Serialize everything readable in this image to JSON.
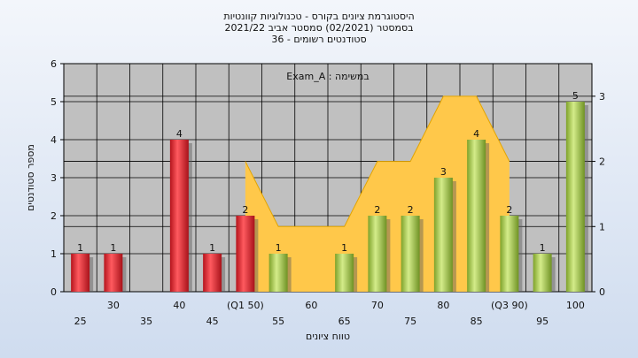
{
  "chart_data": {
    "type": "bar",
    "title_lines": [
      "היסטוגרמת ציונים בקורס - טכנולוגיות קוונטיות",
      "בסמסטר  (02/2021)  סמסטר אביב 2021/22",
      "סטודנטים רשומים - 36"
    ],
    "annotation": "במשימה : Exam_A",
    "xlabel": "טווח ציונים",
    "ylabel": "מספר סטודנטים",
    "categories": [
      "25",
      "30",
      "35",
      "40",
      "45",
      "(Q1 50)",
      "55",
      "60",
      "65",
      "70",
      "75",
      "80",
      "85",
      "(Q3 90)",
      "95",
      "100"
    ],
    "values": [
      1,
      1,
      0,
      4,
      1,
      2,
      1,
      0,
      1,
      2,
      2,
      3,
      4,
      2,
      1,
      5
    ],
    "bar_colors": [
      "red",
      "red",
      "none",
      "red",
      "red",
      "red",
      "green",
      "none",
      "green",
      "green",
      "green",
      "green",
      "green",
      "green",
      "green",
      "green"
    ],
    "ylim": [
      0,
      6
    ],
    "yticks": [
      "0",
      "1",
      "2",
      "3",
      "4",
      "5",
      "6"
    ],
    "y2lim": [
      0,
      3.5
    ],
    "y2ticks": [
      "0",
      "1",
      "2",
      "3"
    ],
    "area_series": {
      "x_categories": [
        "(Q1 50)",
        "55",
        "60",
        "65",
        "70",
        "75",
        "80",
        "85",
        "(Q3 90)"
      ],
      "values": [
        2,
        1,
        1,
        1,
        2,
        2,
        3,
        3,
        2
      ]
    },
    "grid": true,
    "colors": {
      "plot_bg": "#c0c0c0",
      "area_fill": "#ffc84a",
      "red_bar": "#e0262f",
      "green_bar": "#a6cc4a",
      "grid": "#000000"
    }
  }
}
